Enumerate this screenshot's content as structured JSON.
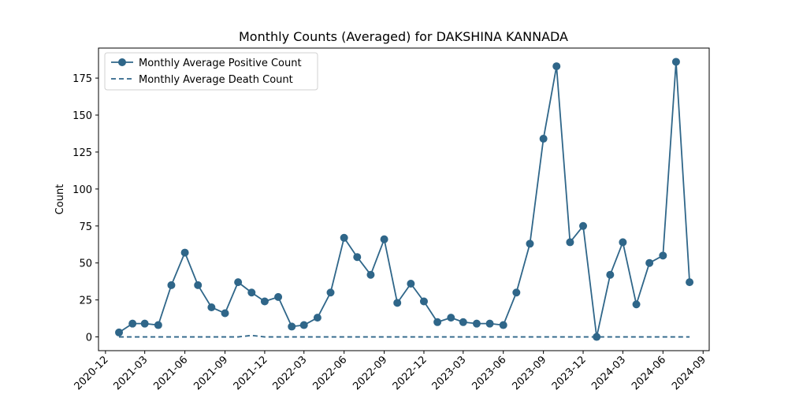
{
  "chart_data": {
    "type": "line",
    "title": "Monthly Counts (Averaged) for DAKSHINA KANNADA",
    "xlabel": "",
    "ylabel": "Count",
    "x": [
      "2021-01",
      "2021-02",
      "2021-03",
      "2021-04",
      "2021-05",
      "2021-06",
      "2021-07",
      "2021-08",
      "2021-09",
      "2021-10",
      "2021-11",
      "2021-12",
      "2022-01",
      "2022-02",
      "2022-03",
      "2022-04",
      "2022-05",
      "2022-06",
      "2022-07",
      "2022-08",
      "2022-09",
      "2022-10",
      "2022-11",
      "2022-12",
      "2023-01",
      "2023-02",
      "2023-03",
      "2023-04",
      "2023-05",
      "2023-06",
      "2023-07",
      "2023-08",
      "2023-09",
      "2023-10",
      "2023-11",
      "2023-12",
      "2024-01",
      "2024-02",
      "2024-03",
      "2024-04",
      "2024-05",
      "2024-06",
      "2024-07",
      "2024-08"
    ],
    "series": [
      {
        "name": "Monthly Average Positive Count",
        "color": "#2f6689",
        "style": "solid",
        "marker": "circle",
        "values": [
          3,
          9,
          9,
          8,
          35,
          57,
          35,
          20,
          16,
          37,
          30,
          24,
          27,
          7,
          8,
          13,
          30,
          67,
          54,
          42,
          66,
          23,
          36,
          24,
          10,
          13,
          10,
          9,
          9,
          8,
          30,
          63,
          134,
          183,
          64,
          75,
          0,
          42,
          64,
          22,
          50,
          55,
          186,
          37
        ]
      },
      {
        "name": "Monthly Average Death Count",
        "color": "#2f6689",
        "style": "dashed",
        "marker": "none",
        "values": [
          0,
          0,
          0,
          0,
          0,
          0,
          0,
          0,
          0,
          0,
          1,
          0,
          0,
          0,
          0,
          0,
          0,
          0,
          0,
          0,
          0,
          0,
          0,
          0,
          0,
          0,
          0,
          0,
          0,
          0,
          0,
          0,
          0,
          0,
          0,
          0,
          0,
          0,
          0,
          0,
          0,
          0,
          0,
          0
        ]
      }
    ],
    "x_ticks": [
      "2020-12",
      "2021-03",
      "2021-06",
      "2021-09",
      "2021-12",
      "2022-03",
      "2022-06",
      "2022-09",
      "2022-12",
      "2023-03",
      "2023-06",
      "2023-09",
      "2023-12",
      "2024-03",
      "2024-06",
      "2024-09"
    ],
    "x_range": [
      "2020-11-15",
      "2024-09-15"
    ],
    "y_ticks": [
      0,
      25,
      50,
      75,
      100,
      125,
      150,
      175
    ],
    "ylim": [
      -9.3,
      195.3
    ],
    "grid": false,
    "legend_position": "upper left"
  }
}
